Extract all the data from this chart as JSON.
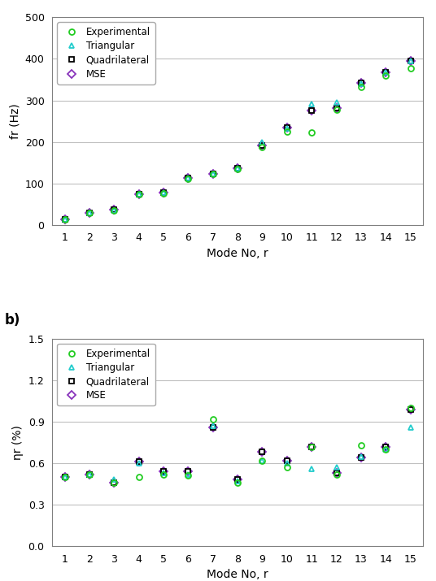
{
  "modes": [
    1,
    2,
    3,
    4,
    5,
    6,
    7,
    8,
    9,
    10,
    11,
    12,
    13,
    14,
    15
  ],
  "freq_experimental": [
    12,
    28,
    35,
    73,
    76,
    110,
    122,
    135,
    188,
    224,
    222,
    277,
    333,
    360,
    378
  ],
  "freq_triangular": [
    12,
    28,
    35,
    74,
    77,
    112,
    123,
    136,
    200,
    233,
    291,
    296,
    340,
    367,
    395
  ],
  "freq_quadrilateral": [
    12,
    29,
    36,
    74,
    77,
    112,
    123,
    136,
    191,
    234,
    275,
    282,
    343,
    368,
    396
  ],
  "freq_mse": [
    12,
    29,
    36,
    74,
    77,
    112,
    123,
    136,
    191,
    234,
    275,
    282,
    343,
    368,
    396
  ],
  "eta_experimental": [
    0.5,
    0.52,
    0.46,
    0.5,
    0.52,
    0.51,
    0.92,
    0.46,
    0.62,
    0.57,
    0.72,
    0.52,
    0.73,
    0.7,
    1.0
  ],
  "eta_triangular": [
    0.5,
    0.52,
    0.48,
    0.6,
    0.53,
    0.52,
    0.87,
    0.47,
    0.62,
    0.6,
    0.56,
    0.57,
    0.65,
    0.7,
    0.86
  ],
  "eta_quadrilateral": [
    0.5,
    0.52,
    0.46,
    0.61,
    0.54,
    0.54,
    0.86,
    0.48,
    0.68,
    0.62,
    0.72,
    0.53,
    0.64,
    0.72,
    0.99
  ],
  "eta_mse": [
    0.5,
    0.52,
    0.46,
    0.61,
    0.54,
    0.54,
    0.86,
    0.48,
    0.68,
    0.62,
    0.72,
    0.53,
    0.64,
    0.72,
    0.99
  ],
  "color_experimental": "#22cc22",
  "color_triangular": "#22cccc",
  "color_quadrilateral": "#000000",
  "color_mse": "#8833bb",
  "marker_experimental": "o",
  "marker_triangular": "^",
  "marker_quadrilateral": "s",
  "marker_mse": "D",
  "freq_ylabel": "fr (Hz)",
  "eta_ylabel": "ηr (%)",
  "xlabel": "Mode No, r",
  "freq_ylim": [
    0,
    500
  ],
  "freq_yticks": [
    0,
    100,
    200,
    300,
    400,
    500
  ],
  "eta_ylim": [
    0.0,
    1.5
  ],
  "eta_yticks": [
    0.0,
    0.3,
    0.6,
    0.9,
    1.2,
    1.5
  ],
  "label_b": "b)",
  "legend_labels": [
    "Experimental",
    "Triangular",
    "Quadrilateral",
    "MSE"
  ],
  "bg_color": "#ffffff",
  "grid_color": "#c0c0c0",
  "spine_color": "#808080"
}
